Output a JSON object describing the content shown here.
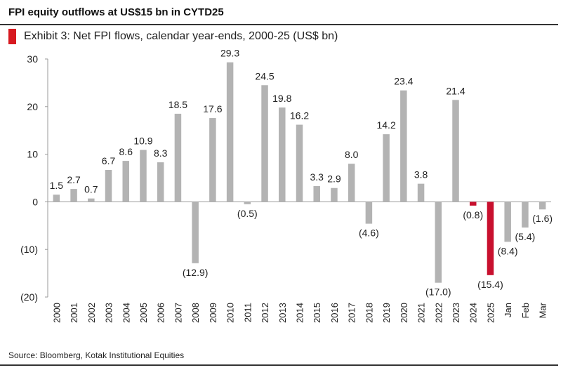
{
  "headline": "FPI equity outflows at US$15 bn in CYTD25",
  "exhibit_title": "Exhibit 3: Net FPI flows, calendar year-ends, 2000-25 (US$ bn)",
  "source": "Source: Bloomberg, Kotak Institutional Equities",
  "colors": {
    "accent": "#d71920",
    "bar": "#b3b3b3",
    "highlight": "#c8102e",
    "axis": "#999999"
  },
  "chart_data": {
    "type": "bar",
    "title": "Exhibit 3: Net FPI flows, calendar year-ends, 2000-25 (US$ bn)",
    "xlabel": "",
    "ylabel": "",
    "ylim": [
      -20,
      30
    ],
    "yticks": [
      30,
      20,
      10,
      0,
      -10,
      -20
    ],
    "ytick_labels": [
      "30",
      "20",
      "10",
      "0",
      "(10)",
      "(20)"
    ],
    "grid": false,
    "categories": [
      "2000",
      "2001",
      "2002",
      "2003",
      "2004",
      "2005",
      "2006",
      "2007",
      "2008",
      "2009",
      "2010",
      "2011",
      "2012",
      "2013",
      "2014",
      "2015",
      "2016",
      "2017",
      "2018",
      "2019",
      "2020",
      "2021",
      "2022",
      "2023",
      "2024",
      "2025",
      "Jan",
      "Feb",
      "Mar"
    ],
    "values": [
      1.5,
      2.7,
      0.7,
      6.7,
      8.6,
      10.9,
      8.3,
      18.5,
      -12.9,
      17.6,
      29.3,
      -0.5,
      24.5,
      19.8,
      16.2,
      3.3,
      2.9,
      8.0,
      -4.6,
      14.2,
      23.4,
      3.8,
      -17.0,
      21.4,
      -0.8,
      -15.4,
      -8.4,
      -5.4,
      -1.6
    ],
    "data_labels": [
      "1.5",
      "2.7",
      "0.7",
      "6.7",
      "8.6",
      "10.9",
      "8.3",
      "18.5",
      "(12.9)",
      "17.6",
      "29.3",
      "(0.5)",
      "24.5",
      "19.8",
      "16.2",
      "3.3",
      "2.9",
      "8.0",
      "(4.6)",
      "14.2",
      "23.4",
      "3.8",
      "(17.0)",
      "21.4",
      "(0.8)",
      "(15.4)",
      "(8.4)",
      "(5.4)",
      "(1.6)"
    ],
    "highlighted": [
      "2024",
      "2025"
    ]
  }
}
